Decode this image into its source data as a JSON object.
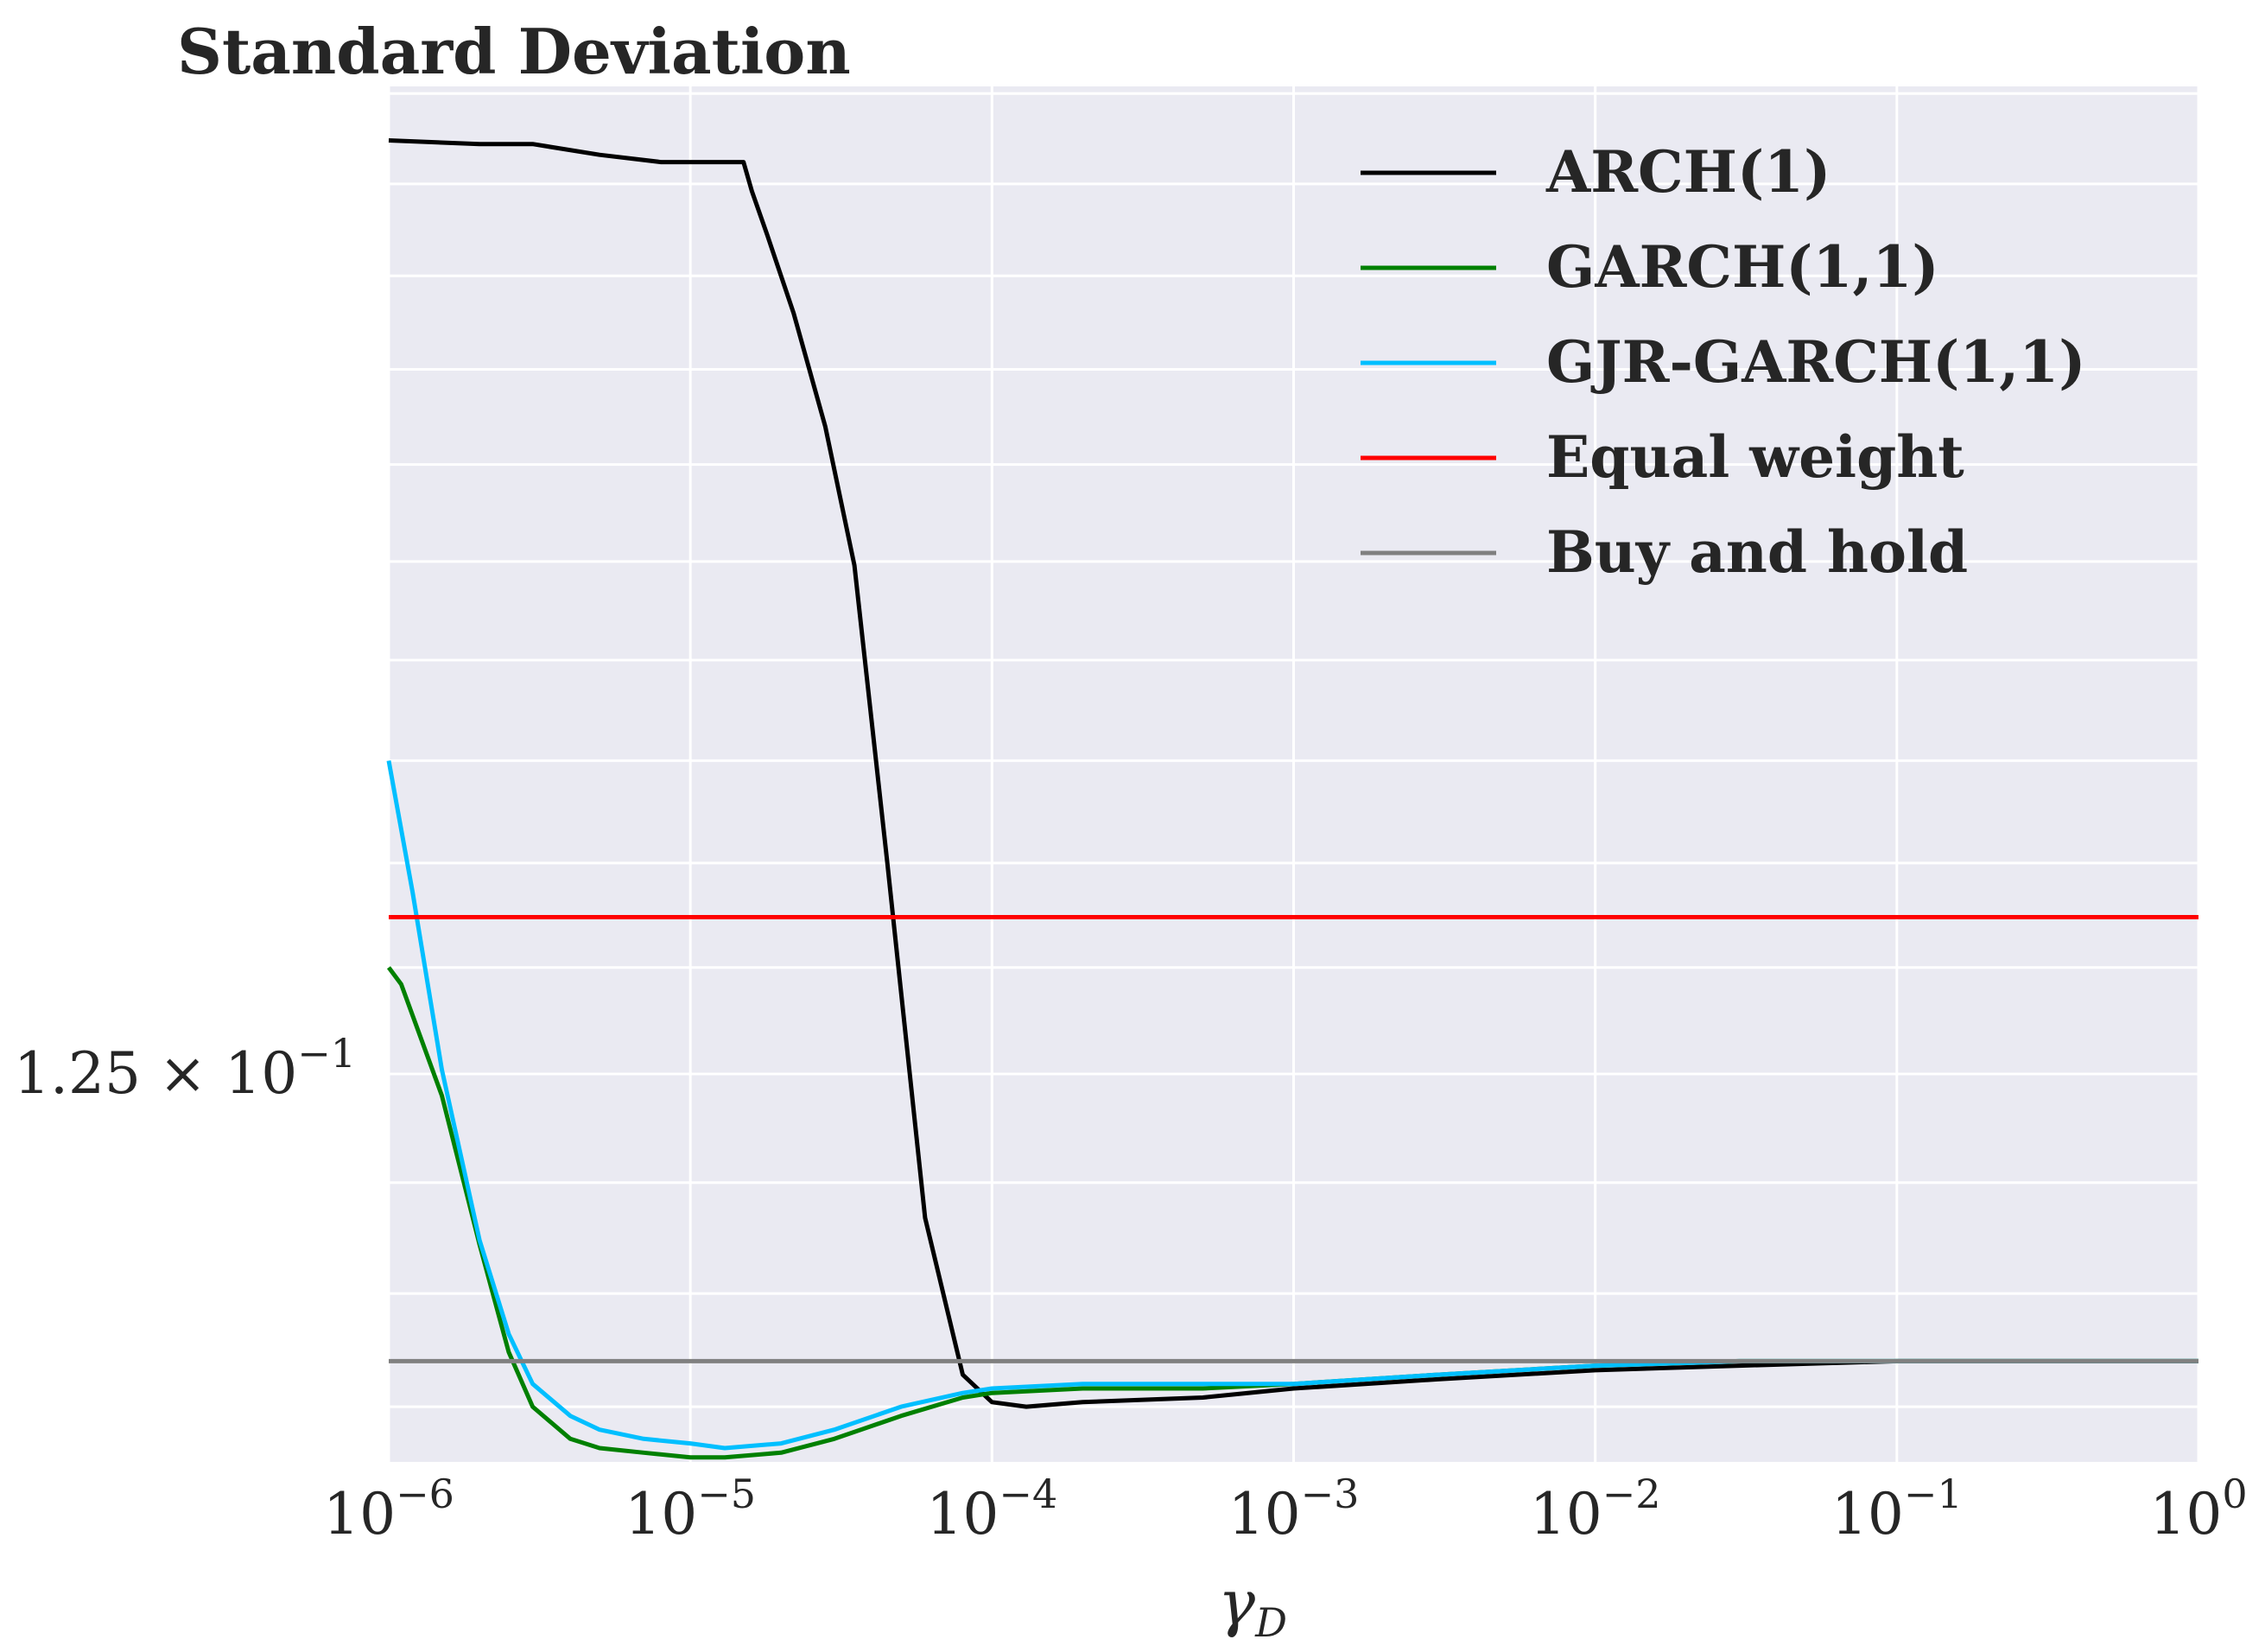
{
  "chart_data": {
    "type": "line",
    "title": "Standard Deviation",
    "xlabel": "γ_D",
    "xlabel_main": "γ",
    "xlabel_sub": "D",
    "ylabel": "",
    "x_scale": "log",
    "y_scale": "log",
    "xlim": [
      1e-06,
      1
    ],
    "ylim": [
      0.1163,
      0.1502
    ],
    "grid": true,
    "legend_position": "top-right",
    "x_ticks": [
      {
        "value": 1e-06,
        "base": "10",
        "exp": "−6"
      },
      {
        "value": 1e-05,
        "base": "10",
        "exp": "−5"
      },
      {
        "value": 0.0001,
        "base": "10",
        "exp": "−4"
      },
      {
        "value": 0.001,
        "base": "10",
        "exp": "−3"
      },
      {
        "value": 0.01,
        "base": "10",
        "exp": "−2"
      },
      {
        "value": 0.1,
        "base": "10",
        "exp": "−1"
      },
      {
        "value": 1,
        "base": "10",
        "exp": "0"
      }
    ],
    "y_ticks": [
      {
        "value": 0.125,
        "mantissa": "1.25 × 10",
        "exp": "−1"
      }
    ],
    "y_minor_grid": [
      0.1175,
      0.12,
      0.1225,
      0.1275,
      0.13,
      0.1325,
      0.135,
      0.1375,
      0.14,
      0.1425,
      0.145,
      0.1475,
      0.15
    ],
    "series": [
      {
        "name": "ARCH(1)",
        "color": "#000000",
        "x": [
          1e-06,
          2e-06,
          3e-06,
          5e-06,
          8e-06,
          1.2e-05,
          1.5e-05,
          1.6e-05,
          1.8e-05,
          2.2e-05,
          2.8e-05,
          3.5e-05,
          4.5e-05,
          6e-05,
          8e-05,
          0.0001,
          0.00013,
          0.0002,
          0.0005,
          0.001,
          0.003,
          0.01,
          0.03,
          0.1,
          0.3,
          1
        ],
        "y": [
          0.1487,
          0.1486,
          0.1486,
          0.1483,
          0.1481,
          0.1481,
          0.1481,
          0.1473,
          0.1461,
          0.144,
          0.141,
          0.1374,
          0.13,
          0.1217,
          0.1182,
          0.1176,
          0.1175,
          0.1176,
          0.1177,
          0.1179,
          0.1181,
          0.1183,
          0.1184,
          0.1185,
          0.1185,
          0.1185
        ]
      },
      {
        "name": "GARCH(1,1)",
        "color": "#008000",
        "x": [
          1e-06,
          1.1e-06,
          1.5e-06,
          2e-06,
          2.5e-06,
          3e-06,
          4e-06,
          5e-06,
          7e-06,
          1e-05,
          1.3e-05,
          2e-05,
          3e-05,
          5e-05,
          8e-05,
          0.0001,
          0.0002,
          0.0005,
          0.001,
          0.003,
          0.01,
          0.03,
          0.1,
          0.3,
          1
        ],
        "y": [
          0.1275,
          0.1271,
          0.1245,
          0.1211,
          0.1187,
          0.1175,
          0.1168,
          0.1166,
          0.1165,
          0.1164,
          0.1164,
          0.1165,
          0.1168,
          0.1173,
          0.1177,
          0.1178,
          0.1179,
          0.1179,
          0.118,
          0.1182,
          0.1184,
          0.1185,
          0.1185,
          0.1185,
          0.1185
        ]
      },
      {
        "name": "GJR-GARCH(1,1)",
        "color": "#00bfff",
        "x": [
          1e-06,
          1.2e-06,
          1.5e-06,
          2e-06,
          2.5e-06,
          3e-06,
          4e-06,
          5e-06,
          7e-06,
          1e-05,
          1.3e-05,
          2e-05,
          3e-05,
          5e-05,
          8e-05,
          0.0001,
          0.0002,
          0.0005,
          0.001,
          0.003,
          0.01,
          0.03,
          0.1,
          0.3,
          1
        ],
        "y": [
          0.1325,
          0.1293,
          0.1251,
          0.1212,
          0.1191,
          0.118,
          0.1173,
          0.117,
          0.1168,
          0.1167,
          0.1166,
          0.1167,
          0.117,
          0.1175,
          0.1178,
          0.1179,
          0.118,
          0.118,
          0.118,
          0.1182,
          0.1184,
          0.1185,
          0.1185,
          0.1185,
          0.1185
        ]
      },
      {
        "name": "Equal weight",
        "color": "#ff0000",
        "x": [
          1e-06,
          1
        ],
        "y": [
          0.1287,
          0.1287
        ]
      },
      {
        "name": "Buy and hold",
        "color": "#808080",
        "x": [
          1e-06,
          1
        ],
        "y": [
          0.1185,
          0.1185
        ]
      }
    ]
  }
}
